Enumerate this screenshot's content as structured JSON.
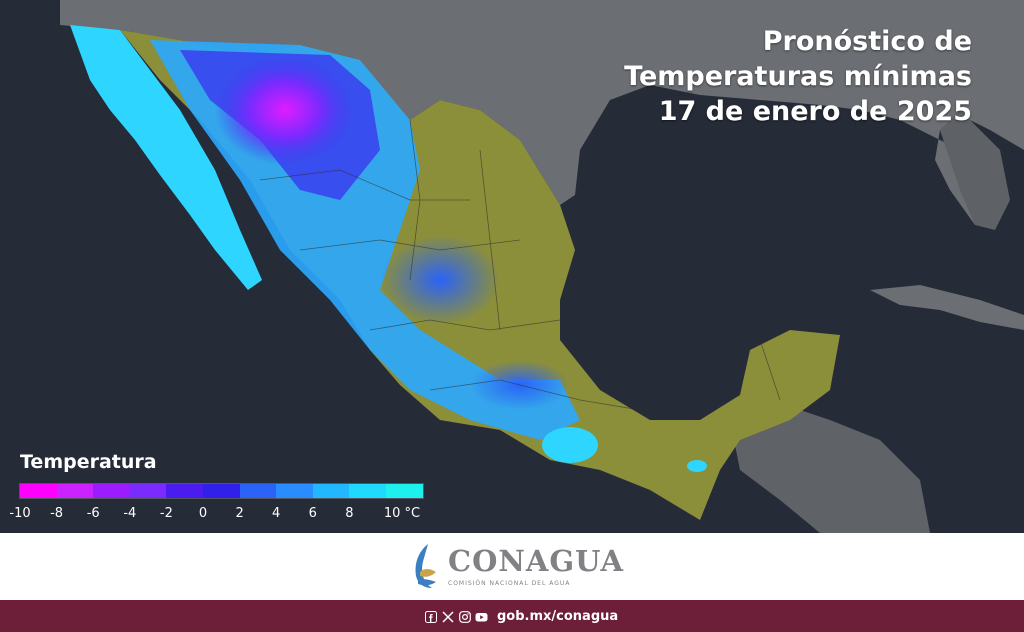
{
  "title": {
    "line1": "Pronóstico de",
    "line2": "Temperaturas mínimas",
    "line3": "17 de enero de 2025"
  },
  "legend": {
    "title": "Temperatura",
    "colors": [
      "#ff00ff",
      "#cc22ff",
      "#9b1dff",
      "#7b2aff",
      "#4a1cf0",
      "#3120e8",
      "#2b63f7",
      "#2a8dff",
      "#22b8ff",
      "#20d9ff",
      "#1ef0ee"
    ],
    "labels": [
      "-10",
      "-8",
      "-6",
      "-4",
      "-2",
      "0",
      "2",
      "4",
      "6",
      "8",
      "10 °C"
    ]
  },
  "footer": {
    "org_name": "CONAGUA",
    "org_subtitle": "COMISIÓN NACIONAL DEL AGUA",
    "social_icons": [
      "facebook-icon",
      "x-icon",
      "instagram-icon",
      "youtube-icon"
    ],
    "url": "gob.mx/conagua"
  }
}
